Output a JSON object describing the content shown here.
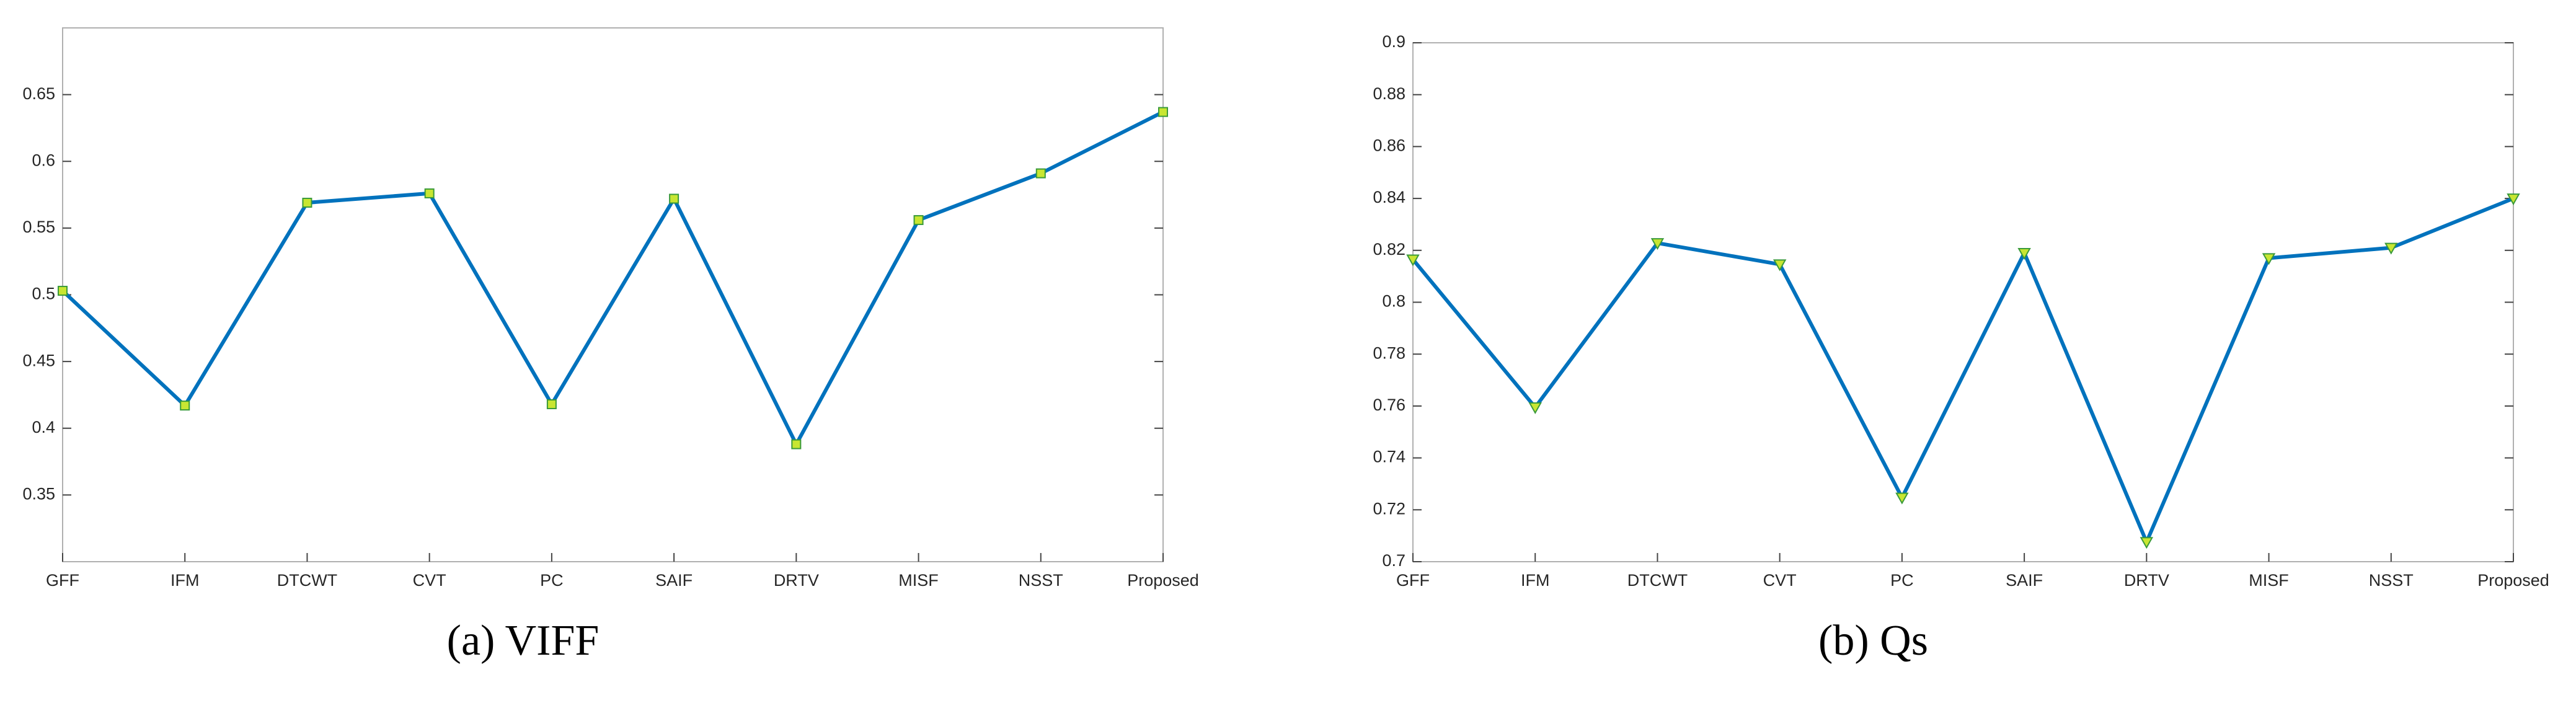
{
  "chart_data": [
    {
      "type": "line",
      "caption": "(a) VIFF",
      "categories": [
        "GFF",
        "IFM",
        "DTCWT",
        "CVT",
        "PC",
        "SAIF",
        "DRTV",
        "MISF",
        "NSST",
        "Proposed"
      ],
      "values": [
        0.503,
        0.417,
        0.569,
        0.576,
        0.418,
        0.572,
        0.388,
        0.556,
        0.591,
        0.637
      ],
      "color": "#0072bd",
      "marker": "square",
      "marker_color": "#c8e632",
      "ylim": [
        0.3,
        0.7
      ],
      "yticks": [
        0.35,
        0.4,
        0.45,
        0.5,
        0.55,
        0.6,
        0.65
      ],
      "grid": false
    },
    {
      "type": "line",
      "caption": "(b) Qs",
      "categories": [
        "GFF",
        "IFM",
        "DTCWT",
        "CVT",
        "PC",
        "SAIF",
        "DRTV",
        "MISF",
        "NSST",
        "Proposed"
      ],
      "values": [
        0.8165,
        0.7595,
        0.8228,
        0.8146,
        0.7247,
        0.819,
        0.7076,
        0.817,
        0.821,
        0.84
      ],
      "color": "#0072bd",
      "marker": "triangle",
      "marker_color": "#c8e632",
      "ylim": [
        0.7,
        0.9
      ],
      "yticks": [
        0.7,
        0.72,
        0.74,
        0.76,
        0.78,
        0.8,
        0.82,
        0.84,
        0.86,
        0.88,
        0.9
      ],
      "grid": false
    }
  ]
}
